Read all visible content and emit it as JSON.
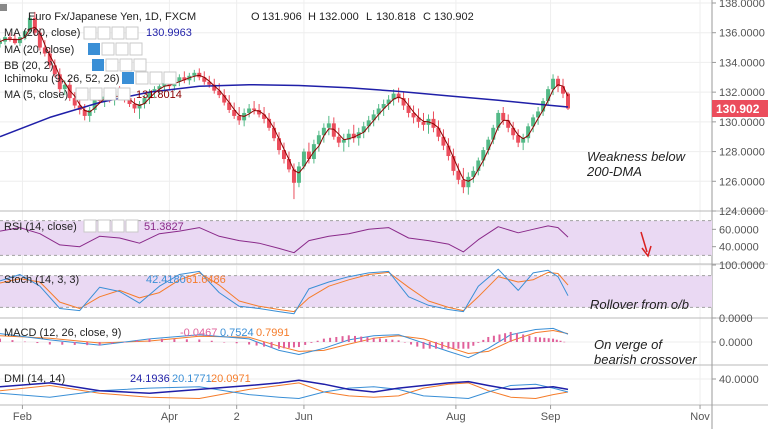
{
  "chart_data": {
    "type": "candlestick",
    "title": "Euro Fx/Japanese Yen, 1D, FXCM",
    "ohlc": {
      "o_label": "O",
      "o": "131.906",
      "h_label": "H",
      "h": "132.000",
      "l_label": "L",
      "l": "130.818",
      "c_label": "C",
      "c": "130.902"
    },
    "last_price_label": "130.902",
    "price_axis": {
      "ticks": [
        "138.0000",
        "136.0000",
        "134.0000",
        "132.0000",
        "130.0000",
        "128.0000",
        "126.0000",
        "124.0000"
      ],
      "ylim": [
        124,
        138
      ]
    },
    "x_axis": {
      "labels": [
        "Feb",
        "Apr",
        "2",
        "Jun",
        "Aug",
        "Sep",
        "Nov"
      ],
      "label_days": [
        9,
        68,
        95,
        122,
        183,
        221,
        281
      ],
      "xlim": [
        0,
        285
      ]
    },
    "candles": [
      [
        0,
        135.25,
        135.6,
        135.0,
        135.4
      ],
      [
        2,
        135.4,
        135.8,
        135.2,
        135.7
      ],
      [
        4,
        135.7,
        136.0,
        135.4,
        135.6
      ],
      [
        6,
        135.6,
        135.9,
        135.2,
        135.3
      ],
      [
        8,
        135.3,
        135.8,
        135.1,
        135.7
      ],
      [
        10,
        135.7,
        136.2,
        135.5,
        136.1
      ],
      [
        12,
        136.1,
        137.2,
        135.9,
        137.0
      ],
      [
        14,
        137.0,
        137.4,
        135.8,
        136.0
      ],
      [
        16,
        136.0,
        136.3,
        134.8,
        135.0
      ],
      [
        18,
        135.0,
        135.5,
        134.4,
        134.6
      ],
      [
        20,
        134.6,
        135.0,
        133.6,
        133.8
      ],
      [
        22,
        133.8,
        134.2,
        133.0,
        133.2
      ],
      [
        24,
        133.2,
        133.6,
        132.0,
        132.2
      ],
      [
        26,
        132.2,
        132.8,
        131.8,
        132.5
      ],
      [
        28,
        132.5,
        132.9,
        131.4,
        131.6
      ],
      [
        30,
        131.6,
        132.0,
        130.9,
        131.1
      ],
      [
        32,
        131.1,
        131.6,
        130.5,
        130.8
      ],
      [
        34,
        130.8,
        131.2,
        130.1,
        130.4
      ],
      [
        36,
        130.4,
        131.0,
        130.0,
        130.8
      ],
      [
        38,
        130.8,
        131.8,
        130.6,
        131.6
      ],
      [
        40,
        131.6,
        132.0,
        131.2,
        131.4
      ],
      [
        42,
        131.4,
        131.9,
        131.0,
        131.7
      ],
      [
        44,
        131.7,
        132.2,
        131.3,
        131.5
      ],
      [
        46,
        131.5,
        132.1,
        131.1,
        131.9
      ],
      [
        48,
        131.9,
        132.4,
        131.5,
        131.8
      ],
      [
        50,
        131.8,
        132.3,
        131.3,
        131.6
      ],
      [
        52,
        131.6,
        132.0,
        131.0,
        131.2
      ],
      [
        54,
        131.2,
        131.6,
        130.6,
        130.9
      ],
      [
        56,
        130.9,
        131.4,
        130.2,
        131.2
      ],
      [
        58,
        131.2,
        131.8,
        130.9,
        131.6
      ],
      [
        60,
        131.6,
        132.2,
        131.2,
        132.0
      ],
      [
        62,
        132.0,
        132.4,
        131.6,
        132.2
      ],
      [
        64,
        132.2,
        132.6,
        131.8,
        132.4
      ],
      [
        66,
        132.4,
        132.8,
        132.0,
        132.6
      ],
      [
        68,
        132.6,
        133.0,
        132.2,
        132.4
      ],
      [
        70,
        132.4,
        132.9,
        132.1,
        132.7
      ],
      [
        72,
        132.7,
        133.2,
        132.4,
        133.0
      ],
      [
        74,
        133.0,
        133.4,
        132.6,
        132.8
      ],
      [
        76,
        132.8,
        133.3,
        132.5,
        133.1
      ],
      [
        78,
        133.1,
        133.5,
        132.7,
        133.3
      ],
      [
        80,
        133.3,
        133.6,
        132.8,
        133.0
      ],
      [
        82,
        133.0,
        133.4,
        132.5,
        132.7
      ],
      [
        84,
        132.7,
        133.1,
        132.3,
        132.5
      ],
      [
        86,
        132.5,
        132.9,
        131.9,
        132.1
      ],
      [
        88,
        132.1,
        132.6,
        131.6,
        131.8
      ],
      [
        90,
        131.8,
        132.2,
        131.1,
        131.3
      ],
      [
        92,
        131.3,
        131.8,
        130.6,
        130.8
      ],
      [
        94,
        130.8,
        131.3,
        130.2,
        130.4
      ],
      [
        96,
        130.4,
        131.0,
        129.8,
        130.1
      ],
      [
        98,
        130.1,
        130.9,
        129.7,
        130.6
      ],
      [
        100,
        130.6,
        131.2,
        130.3,
        130.9
      ],
      [
        102,
        130.9,
        131.4,
        130.5,
        130.8
      ],
      [
        104,
        130.8,
        131.2,
        130.3,
        130.5
      ],
      [
        106,
        130.5,
        131.0,
        129.9,
        130.2
      ],
      [
        108,
        130.2,
        130.6,
        129.4,
        129.6
      ],
      [
        110,
        129.6,
        130.0,
        128.7,
        128.9
      ],
      [
        112,
        128.9,
        129.3,
        127.8,
        128.1
      ],
      [
        114,
        128.1,
        128.6,
        127.2,
        127.5
      ],
      [
        116,
        127.5,
        128.0,
        126.6,
        126.8
      ],
      [
        118,
        126.8,
        127.2,
        124.8,
        125.9
      ],
      [
        120,
        125.9,
        127.3,
        125.6,
        127.0
      ],
      [
        122,
        127.0,
        128.2,
        126.8,
        128.0
      ],
      [
        124,
        128.0,
        128.6,
        127.2,
        127.5
      ],
      [
        126,
        127.5,
        128.8,
        127.2,
        128.5
      ],
      [
        128,
        128.5,
        129.4,
        128.0,
        129.1
      ],
      [
        130,
        129.1,
        129.9,
        128.6,
        129.6
      ],
      [
        132,
        129.6,
        130.4,
        129.1,
        129.9
      ],
      [
        134,
        129.9,
        130.3,
        128.8,
        129.0
      ],
      [
        136,
        129.0,
        129.6,
        128.3,
        128.6
      ],
      [
        138,
        128.6,
        129.2,
        128.0,
        128.8
      ],
      [
        140,
        128.8,
        129.5,
        128.3,
        129.2
      ],
      [
        142,
        129.2,
        129.8,
        128.6,
        128.9
      ],
      [
        144,
        128.9,
        129.6,
        128.4,
        129.3
      ],
      [
        146,
        129.3,
        130.0,
        128.9,
        129.7
      ],
      [
        148,
        129.7,
        130.4,
        129.3,
        130.1
      ],
      [
        150,
        130.1,
        130.8,
        129.7,
        130.5
      ],
      [
        152,
        130.5,
        131.2,
        130.1,
        130.9
      ],
      [
        154,
        130.9,
        131.5,
        130.4,
        131.2
      ],
      [
        156,
        131.2,
        131.8,
        130.8,
        131.5
      ],
      [
        158,
        131.5,
        132.2,
        131.1,
        131.9
      ],
      [
        160,
        131.9,
        132.3,
        131.3,
        131.6
      ],
      [
        162,
        131.6,
        132.0,
        130.8,
        131.1
      ],
      [
        164,
        131.1,
        131.6,
        130.3,
        130.6
      ],
      [
        166,
        130.6,
        131.1,
        129.9,
        130.3
      ],
      [
        168,
        130.3,
        130.9,
        129.6,
        130.0
      ],
      [
        170,
        130.0,
        130.6,
        129.4,
        129.8
      ],
      [
        172,
        129.8,
        130.5,
        129.2,
        130.2
      ],
      [
        174,
        130.2,
        130.7,
        129.3,
        129.6
      ],
      [
        176,
        129.6,
        130.1,
        128.7,
        129.0
      ],
      [
        178,
        129.0,
        129.5,
        128.1,
        128.4
      ],
      [
        180,
        128.4,
        128.9,
        127.4,
        127.7
      ],
      [
        182,
        127.7,
        128.2,
        126.4,
        126.7
      ],
      [
        184,
        126.7,
        127.2,
        125.8,
        126.1
      ],
      [
        186,
        126.1,
        126.9,
        125.2,
        125.6
      ],
      [
        188,
        125.6,
        126.6,
        125.1,
        126.3
      ],
      [
        190,
        126.3,
        127.0,
        125.9,
        126.7
      ],
      [
        192,
        126.7,
        127.6,
        126.4,
        127.4
      ],
      [
        194,
        127.4,
        128.3,
        127.0,
        128.1
      ],
      [
        196,
        128.1,
        129.0,
        127.8,
        128.8
      ],
      [
        198,
        128.8,
        129.8,
        128.5,
        129.6
      ],
      [
        200,
        129.6,
        130.8,
        129.4,
        130.6
      ],
      [
        202,
        130.6,
        131.0,
        129.8,
        130.1
      ],
      [
        204,
        130.1,
        130.5,
        129.3,
        129.6
      ],
      [
        206,
        129.6,
        130.0,
        128.8,
        129.1
      ],
      [
        208,
        129.1,
        129.5,
        128.3,
        128.6
      ],
      [
        210,
        128.6,
        129.2,
        128.1,
        128.9
      ],
      [
        212,
        128.9,
        129.9,
        128.6,
        129.7
      ],
      [
        214,
        129.7,
        130.5,
        129.3,
        130.3
      ],
      [
        216,
        130.3,
        131.0,
        129.8,
        130.7
      ],
      [
        218,
        130.7,
        131.6,
        130.4,
        131.4
      ],
      [
        220,
        131.4,
        132.4,
        131.1,
        132.2
      ],
      [
        222,
        132.2,
        133.2,
        131.8,
        132.9
      ],
      [
        224,
        132.9,
        133.1,
        132.0,
        132.4
      ],
      [
        226,
        132.4,
        132.9,
        131.6,
        131.9
      ],
      [
        228,
        131.9,
        132.0,
        130.8,
        130.9
      ]
    ],
    "sma200_legend": "MA (200, close)",
    "sma200_value": "130.9963",
    "sma200": {
      "x": [
        0,
        20,
        40,
        60,
        80,
        100,
        120,
        140,
        160,
        180,
        200,
        215,
        228
      ],
      "y": [
        129.0,
        130.3,
        131.3,
        132.0,
        132.4,
        132.5,
        132.45,
        132.3,
        132.05,
        131.75,
        131.45,
        131.2,
        131.0
      ]
    },
    "sma5_legend": "MA (5, close)",
    "sma5_value": "131.8014",
    "indicator_legends": [
      "MA (20, close)",
      "BB (20, 2)",
      "Ichimoku (9, 26, 52, 26)"
    ],
    "rsi": {
      "legend": "RSI (14, close)",
      "value": "51.3827",
      "ticks": [
        "60.0000",
        "40.0000"
      ],
      "ylim": [
        20,
        80
      ],
      "band": [
        30,
        70
      ],
      "x": [
        0,
        8,
        16,
        24,
        32,
        40,
        48,
        56,
        64,
        72,
        80,
        88,
        96,
        104,
        112,
        118,
        124,
        132,
        140,
        148,
        156,
        164,
        172,
        180,
        186,
        192,
        200,
        208,
        214,
        220,
        224,
        228
      ],
      "y": [
        58,
        62,
        55,
        42,
        40,
        52,
        50,
        44,
        55,
        58,
        62,
        52,
        47,
        44,
        38,
        33,
        47,
        52,
        55,
        60,
        62,
        50,
        47,
        43,
        34,
        48,
        63,
        56,
        60,
        64,
        62,
        51
      ]
    },
    "stoch": {
      "legend": "Stoch (14, 3, 3)",
      "k_value": "42.4180",
      "d_value": "61.6486",
      "ticks": [
        "100.0000",
        "0.0000"
      ],
      "ylim": [
        0,
        100
      ],
      "band": [
        20,
        80
      ],
      "k": {
        "x": [
          0,
          8,
          16,
          24,
          32,
          40,
          48,
          56,
          64,
          72,
          80,
          88,
          96,
          104,
          112,
          118,
          124,
          132,
          140,
          148,
          156,
          164,
          172,
          180,
          186,
          192,
          200,
          208,
          214,
          220,
          224,
          228
        ],
        "y": [
          70,
          82,
          60,
          18,
          14,
          58,
          50,
          28,
          60,
          82,
          88,
          48,
          22,
          18,
          12,
          8,
          55,
          68,
          78,
          85,
          88,
          40,
          24,
          16,
          12,
          60,
          92,
          52,
          85,
          90,
          78,
          42
        ]
      },
      "d": {
        "x": [
          0,
          8,
          16,
          24,
          32,
          40,
          48,
          56,
          64,
          72,
          80,
          88,
          96,
          104,
          112,
          118,
          124,
          132,
          140,
          148,
          156,
          164,
          172,
          180,
          186,
          192,
          200,
          208,
          214,
          220,
          224,
          228
        ],
        "y": [
          66,
          74,
          68,
          30,
          18,
          40,
          52,
          38,
          48,
          72,
          85,
          62,
          32,
          22,
          16,
          12,
          38,
          60,
          72,
          82,
          86,
          58,
          32,
          20,
          14,
          40,
          78,
          68,
          72,
          86,
          84,
          62
        ]
      }
    },
    "macd": {
      "legend": "MACD (12, 26, close, 9)",
      "hist_value": "-0.0467",
      "macd_value": "0.7524",
      "signal_value": "0.7991",
      "ticks": [
        "0.0000"
      ],
      "ylim": [
        -2.2,
        2.2
      ],
      "macd_line": {
        "x": [
          0,
          20,
          40,
          60,
          80,
          100,
          112,
          120,
          130,
          140,
          150,
          160,
          170,
          180,
          188,
          196,
          205,
          215,
          222,
          228
        ],
        "y": [
          0.8,
          0.2,
          -0.3,
          0.3,
          0.7,
          0.3,
          -0.8,
          -1.2,
          -0.6,
          0.2,
          0.6,
          0.7,
          -0.1,
          -0.9,
          -1.5,
          -0.6,
          0.7,
          1.2,
          1.3,
          0.75
        ]
      },
      "signal_line": {
        "x": [
          0,
          20,
          40,
          60,
          80,
          100,
          112,
          120,
          130,
          140,
          150,
          160,
          170,
          180,
          188,
          196,
          205,
          215,
          222,
          228
        ],
        "y": [
          0.6,
          0.35,
          -0.1,
          0.1,
          0.55,
          0.45,
          -0.4,
          -0.9,
          -0.8,
          -0.2,
          0.35,
          0.6,
          0.3,
          -0.5,
          -1.1,
          -0.9,
          0.1,
          0.9,
          1.1,
          0.8
        ]
      }
    },
    "dmi": {
      "legend": "DMI (14, 14)",
      "adx_value": "24.1936",
      "di_plus_value": "20.1771",
      "di_minus_value": "20.0971",
      "ticks": [
        "40.0000"
      ],
      "ylim": [
        0,
        60
      ],
      "adx": {
        "x": [
          0,
          20,
          40,
          60,
          80,
          100,
          112,
          120,
          130,
          140,
          150,
          160,
          170,
          180,
          188,
          196,
          205,
          215,
          222,
          228
        ],
        "y": [
          28,
          34,
          22,
          18,
          24,
          30,
          34,
          38,
          32,
          24,
          20,
          26,
          30,
          34,
          36,
          30,
          24,
          26,
          28,
          24
        ]
      },
      "di_plus": {
        "x": [
          0,
          20,
          40,
          60,
          80,
          100,
          112,
          120,
          130,
          140,
          150,
          160,
          170,
          180,
          188,
          196,
          205,
          215,
          222,
          228
        ],
        "y": [
          18,
          12,
          22,
          26,
          28,
          16,
          12,
          10,
          20,
          26,
          28,
          24,
          14,
          12,
          10,
          20,
          30,
          32,
          26,
          20
        ]
      },
      "di_minus": {
        "x": [
          0,
          20,
          40,
          60,
          80,
          100,
          112,
          120,
          130,
          140,
          150,
          160,
          170,
          180,
          188,
          196,
          205,
          215,
          222,
          228
        ],
        "y": [
          22,
          30,
          18,
          12,
          10,
          24,
          30,
          34,
          20,
          14,
          12,
          14,
          26,
          32,
          34,
          22,
          12,
          10,
          16,
          20
        ]
      }
    },
    "annotations": {
      "a1_line1": "Weakness below",
      "a1_line2": "200-DMA",
      "a2": "Rollover from o/b",
      "a3_line1": "On verge of",
      "a3_line2": "bearish crossover"
    },
    "colors": {
      "up": "#53b987",
      "down": "#eb4d5c",
      "sma200": "#1f1fa8",
      "sma5": "#8b0000",
      "rsi": "#8a2a8a",
      "rsi_band": "#ead9f3",
      "stoch_k": "#3a8fd6",
      "stoch_d": "#f57c2a",
      "macd": "#3a8fd6",
      "signal": "#f57c2a",
      "hist": "#e0609a",
      "adx": "#1f1fa8",
      "di_plus": "#3a8fd6",
      "di_minus": "#f57c2a",
      "last_price_bg": "#eb4d5c",
      "arrow": "#d92020"
    }
  }
}
